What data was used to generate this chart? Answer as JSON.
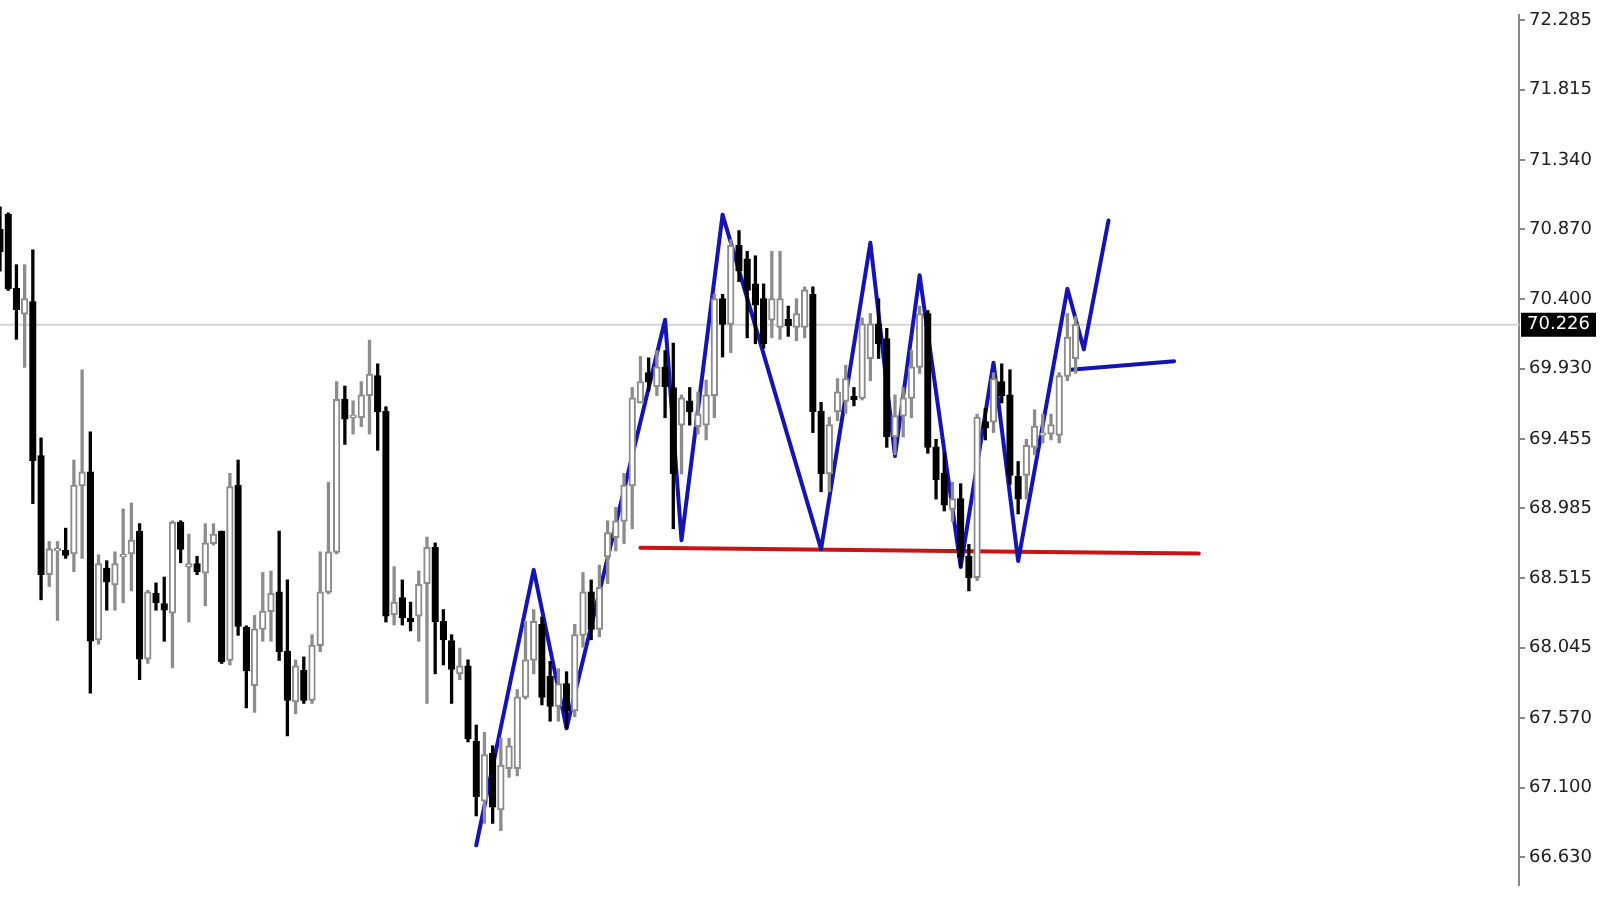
{
  "chart_data": {
    "type": "candlestick",
    "tick_labels": "y",
    "categories": [
      null,
      null,
      null,
      null,
      null,
      null,
      null,
      null,
      null,
      null,
      null,
      null,
      null,
      null,
      null,
      null,
      null,
      null,
      null,
      null,
      null,
      null,
      null,
      null,
      null,
      null,
      null,
      null,
      null,
      null,
      null,
      null,
      null,
      null,
      null,
      null,
      null,
      null,
      null,
      null,
      null,
      null,
      null,
      null,
      null,
      null,
      null,
      null,
      null,
      null,
      null,
      null,
      null,
      null,
      null,
      null,
      null,
      null,
      null,
      null,
      null,
      null,
      null,
      null,
      null,
      null,
      null,
      null,
      null,
      null,
      null,
      null,
      null,
      null,
      null,
      null,
      null,
      null,
      null,
      null,
      null,
      null,
      null,
      null,
      null,
      null,
      null,
      null,
      null,
      null,
      null,
      null,
      null,
      null,
      null,
      null,
      null,
      null,
      null,
      null,
      null,
      null,
      null,
      null,
      null,
      null,
      null,
      null,
      null,
      null,
      null,
      null,
      null,
      null,
      null,
      null,
      null,
      null,
      null,
      null,
      null,
      null,
      null,
      null,
      null,
      null,
      null,
      null,
      null,
      null,
      null,
      null,
      null,
      null,
      null,
      null,
      null,
      null,
      null,
      null,
      null,
      null,
      null,
      null,
      null,
      null,
      null,
      null,
      null,
      null,
      null,
      null,
      null,
      null,
      null,
      null,
      null,
      null,
      null,
      null,
      null,
      null,
      null,
      null,
      null,
      null,
      null,
      null,
      null,
      null,
      null,
      null,
      null,
      null,
      null,
      null,
      null,
      null,
      null,
      null,
      null,
      null,
      null,
      null,
      null,
      null
    ],
    "ohlc": [
      [
        70.87,
        71.02,
        70.59,
        70.72
      ],
      [
        70.97,
        70.98,
        70.46,
        70.47
      ],
      [
        70.47,
        70.63,
        70.13,
        70.33
      ],
      [
        70.3,
        70.63,
        69.94,
        70.4
      ],
      [
        70.38,
        70.73,
        69.02,
        69.31
      ],
      [
        69.34,
        69.46,
        68.37,
        68.54
      ],
      [
        68.54,
        68.76,
        68.46,
        68.71
      ],
      [
        68.7,
        68.76,
        68.23,
        68.71
      ],
      [
        68.7,
        68.85,
        68.65,
        68.67
      ],
      [
        68.68,
        69.31,
        68.56,
        69.14
      ],
      [
        69.14,
        69.92,
        68.65,
        69.23
      ],
      [
        69.23,
        69.5,
        67.74,
        68.09
      ],
      [
        68.1,
        68.67,
        68.07,
        68.61
      ],
      [
        68.58,
        68.63,
        68.3,
        68.49
      ],
      [
        68.47,
        68.69,
        68.3,
        68.61
      ],
      [
        68.66,
        68.98,
        68.35,
        68.67
      ],
      [
        68.68,
        69.02,
        68.43,
        68.77
      ],
      [
        68.83,
        68.88,
        67.83,
        67.97
      ],
      [
        67.97,
        68.43,
        67.94,
        68.42
      ],
      [
        68.41,
        68.48,
        68.3,
        68.35
      ],
      [
        68.34,
        68.52,
        68.09,
        68.3
      ],
      [
        68.28,
        68.9,
        67.91,
        68.89
      ],
      [
        68.89,
        68.9,
        68.62,
        68.71
      ],
      [
        68.59,
        68.81,
        68.22,
        68.61
      ],
      [
        68.61,
        68.66,
        68.54,
        68.56
      ],
      [
        68.55,
        68.88,
        68.33,
        68.75
      ],
      [
        68.75,
        68.88,
        68.74,
        68.81
      ],
      [
        68.83,
        68.83,
        67.94,
        67.95
      ],
      [
        67.96,
        69.22,
        67.93,
        69.13
      ],
      [
        69.14,
        69.31,
        68.13,
        68.19
      ],
      [
        68.18,
        68.19,
        67.64,
        67.89
      ],
      [
        67.79,
        68.26,
        67.61,
        68.17
      ],
      [
        68.17,
        68.55,
        68.09,
        68.29
      ],
      [
        68.29,
        68.56,
        68.09,
        68.41
      ],
      [
        68.42,
        68.83,
        67.96,
        68.02
      ],
      [
        68.02,
        68.5,
        67.45,
        67.69
      ],
      [
        67.68,
        67.96,
        67.6,
        67.92
      ],
      [
        67.89,
        67.98,
        67.67,
        67.69
      ],
      [
        67.69,
        68.13,
        67.67,
        68.06
      ],
      [
        68.06,
        68.69,
        68.02,
        68.42
      ],
      [
        68.42,
        69.16,
        68.41,
        68.69
      ],
      [
        68.69,
        69.84,
        68.68,
        69.72
      ],
      [
        69.72,
        69.81,
        69.42,
        69.59
      ],
      [
        69.6,
        69.71,
        69.49,
        69.61
      ],
      [
        69.6,
        69.84,
        69.54,
        69.75
      ],
      [
        69.75,
        70.12,
        69.49,
        69.89
      ],
      [
        69.88,
        69.96,
        69.38,
        69.64
      ],
      [
        69.64,
        69.67,
        68.22,
        68.26
      ],
      [
        68.27,
        68.59,
        68.2,
        68.35
      ],
      [
        68.38,
        68.5,
        68.2,
        68.25
      ],
      [
        68.24,
        68.35,
        68.16,
        68.22
      ],
      [
        68.26,
        68.56,
        68.09,
        68.47
      ],
      [
        68.48,
        68.79,
        67.67,
        68.72
      ],
      [
        68.72,
        68.75,
        67.87,
        68.22
      ],
      [
        68.22,
        68.3,
        67.93,
        68.1
      ],
      [
        68.09,
        68.13,
        67.67,
        67.9
      ],
      [
        67.87,
        68.04,
        67.83,
        67.92
      ],
      [
        67.92,
        67.96,
        67.41,
        67.43
      ],
      [
        67.41,
        67.52,
        66.91,
        67.04
      ],
      [
        67.01,
        67.47,
        66.86,
        67.32
      ],
      [
        67.33,
        67.38,
        66.86,
        66.97
      ],
      [
        66.95,
        67.43,
        66.81,
        67.25
      ],
      [
        67.23,
        67.43,
        67.17,
        67.38
      ],
      [
        67.23,
        67.76,
        67.18,
        67.71
      ],
      [
        67.71,
        68.22,
        67.7,
        67.96
      ],
      [
        67.96,
        68.3,
        67.87,
        68.22
      ],
      [
        68.2,
        68.25,
        67.66,
        67.71
      ],
      [
        67.85,
        67.95,
        67.55,
        67.65
      ],
      [
        67.65,
        67.9,
        67.55,
        67.8
      ],
      [
        67.8,
        67.88,
        67.5,
        67.62
      ],
      [
        67.62,
        68.2,
        67.58,
        68.13
      ],
      [
        68.13,
        68.55,
        68.05,
        68.42
      ],
      [
        68.42,
        68.5,
        68.1,
        68.17
      ],
      [
        68.17,
        68.6,
        68.12,
        68.45
      ],
      [
        68.66,
        68.9,
        68.48,
        68.82
      ],
      [
        68.79,
        68.99,
        68.7,
        68.9
      ],
      [
        68.9,
        69.22,
        68.75,
        69.14
      ],
      [
        69.14,
        69.8,
        68.85,
        69.73
      ],
      [
        69.7,
        70.01,
        69.7,
        69.84
      ],
      [
        69.9,
        70.0,
        69.78,
        69.84
      ],
      [
        69.81,
        70.05,
        69.75,
        69.94
      ],
      [
        69.94,
        70.05,
        69.6,
        69.81
      ],
      [
        69.8,
        70.1,
        68.85,
        69.22
      ],
      [
        69.55,
        69.75,
        69.22,
        69.73
      ],
      [
        69.71,
        69.8,
        69.55,
        69.64
      ],
      [
        69.54,
        69.77,
        69.49,
        69.62
      ],
      [
        69.55,
        69.85,
        69.45,
        69.75
      ],
      [
        69.75,
        70.43,
        69.6,
        70.4
      ],
      [
        70.4,
        70.43,
        70.01,
        70.23
      ],
      [
        70.23,
        70.8,
        70.04,
        70.76
      ],
      [
        70.76,
        70.86,
        70.52,
        70.59
      ],
      [
        70.67,
        70.72,
        70.14,
        70.46
      ],
      [
        70.5,
        70.69,
        70.1,
        70.36
      ],
      [
        70.4,
        70.5,
        70.07,
        70.1
      ],
      [
        70.26,
        70.72,
        70.14,
        70.4
      ],
      [
        70.21,
        70.72,
        70.13,
        70.4
      ],
      [
        70.26,
        70.35,
        70.15,
        70.22
      ],
      [
        70.21,
        70.4,
        70.12,
        70.3
      ],
      [
        70.21,
        70.48,
        70.14,
        70.46
      ],
      [
        70.43,
        70.48,
        69.5,
        69.64
      ],
      [
        69.64,
        69.7,
        69.1,
        69.22
      ],
      [
        69.22,
        69.6,
        69.1,
        69.55
      ],
      [
        69.64,
        69.86,
        69.58,
        69.77
      ],
      [
        69.71,
        69.95,
        69.63,
        69.86
      ],
      [
        69.74,
        69.8,
        69.68,
        69.72
      ],
      [
        69.73,
        70.27,
        69.72,
        70.23
      ],
      [
        70.0,
        70.3,
        69.85,
        70.23
      ],
      [
        70.23,
        70.4,
        70.0,
        70.1
      ],
      [
        70.13,
        70.2,
        69.4,
        69.47
      ],
      [
        69.47,
        69.75,
        69.35,
        69.61
      ],
      [
        69.61,
        69.8,
        69.47,
        69.73
      ],
      [
        69.73,
        70.05,
        69.6,
        69.94
      ],
      [
        69.94,
        70.35,
        69.9,
        70.3
      ],
      [
        70.3,
        70.32,
        69.36,
        69.4
      ],
      [
        69.4,
        69.45,
        69.05,
        69.18
      ],
      [
        69.22,
        69.36,
        68.97,
        69.01
      ],
      [
        68.98,
        69.16,
        68.9,
        69.05
      ],
      [
        69.05,
        69.15,
        68.59,
        68.66
      ],
      [
        68.66,
        68.74,
        68.43,
        68.52
      ],
      [
        68.52,
        69.62,
        68.5,
        69.6
      ],
      [
        69.57,
        69.66,
        69.45,
        69.53
      ],
      [
        69.57,
        69.9,
        69.5,
        69.86
      ],
      [
        69.84,
        69.96,
        69.7,
        69.75
      ],
      [
        69.75,
        69.92,
        69.15,
        69.21
      ],
      [
        69.2,
        69.3,
        68.95,
        69.05
      ],
      [
        69.21,
        69.45,
        69.05,
        69.41
      ],
      [
        69.4,
        69.65,
        69.35,
        69.54
      ],
      [
        69.48,
        69.62,
        69.43,
        69.49
      ],
      [
        69.49,
        69.62,
        69.45,
        69.55
      ],
      [
        69.48,
        69.9,
        69.43,
        69.88
      ],
      [
        69.88,
        70.3,
        69.85,
        70.14
      ],
      [
        70.0,
        70.28,
        69.9,
        70.226
      ],
      null,
      null,
      null,
      null,
      null,
      null,
      null,
      null,
      null,
      null,
      null,
      null,
      null,
      null,
      null,
      null,
      null,
      null,
      null,
      null,
      null,
      null,
      null,
      null,
      null,
      null,
      null,
      null,
      null,
      null,
      null,
      null,
      null,
      null,
      null,
      null,
      null,
      null,
      null,
      null,
      null,
      null,
      null,
      null,
      null,
      null,
      null,
      null,
      null,
      null,
      null,
      null,
      null,
      null
    ],
    "series": [
      {
        "type": "line",
        "color": "#1414b4",
        "values": [
          null,
          null,
          null,
          null,
          null,
          null,
          null,
          null,
          null,
          null,
          null,
          null,
          null,
          null,
          null,
          null,
          null,
          null,
          null,
          null,
          null,
          null,
          null,
          null,
          null,
          null,
          null,
          null,
          null,
          null,
          null,
          null,
          null,
          null,
          null,
          null,
          null,
          null,
          null,
          null,
          null,
          null,
          null,
          null,
          null,
          null,
          null,
          null,
          null,
          null,
          null,
          null,
          null,
          null,
          null,
          null,
          null,
          null,
          66.71,
          null,
          null,
          null,
          null,
          null,
          null,
          68.57,
          null,
          null,
          null,
          67.5,
          null,
          null,
          null,
          null,
          null,
          null,
          null,
          null,
          null,
          null,
          null,
          70.26,
          null,
          68.77,
          null,
          null,
          null,
          null,
          70.97,
          null,
          null,
          null,
          null,
          null,
          null,
          null,
          null,
          null,
          null,
          null,
          68.71,
          null,
          null,
          null,
          null,
          null,
          70.78,
          null,
          null,
          69.34,
          null,
          null,
          70.56,
          null,
          null,
          null,
          null,
          68.59,
          null,
          null,
          null,
          69.97,
          null,
          null,
          68.63,
          null,
          null,
          null,
          null,
          null,
          70.47,
          null,
          70.06,
          null,
          null,
          70.93,
          null,
          null,
          null,
          null,
          null,
          null,
          null,
          null,
          null,
          null,
          null,
          null,
          null,
          null,
          null,
          null,
          null,
          null,
          null,
          null,
          null,
          null,
          null,
          null,
          null,
          null,
          null,
          null,
          null,
          null,
          null,
          null,
          null,
          null,
          null,
          null,
          null,
          null,
          null,
          null,
          null,
          null,
          null,
          null,
          null,
          null,
          null,
          null,
          null,
          null
        ]
      },
      {
        "type": "line",
        "color": "#1414b4",
        "values": [
          null,
          null,
          null,
          null,
          null,
          null,
          null,
          null,
          null,
          null,
          null,
          null,
          null,
          null,
          null,
          null,
          null,
          null,
          null,
          null,
          null,
          null,
          null,
          null,
          null,
          null,
          null,
          null,
          null,
          null,
          null,
          null,
          null,
          null,
          null,
          null,
          null,
          null,
          null,
          null,
          null,
          null,
          null,
          null,
          null,
          null,
          null,
          null,
          null,
          null,
          null,
          null,
          null,
          null,
          null,
          null,
          null,
          null,
          null,
          null,
          null,
          null,
          null,
          null,
          null,
          null,
          null,
          null,
          null,
          null,
          null,
          null,
          null,
          null,
          null,
          null,
          null,
          null,
          null,
          null,
          null,
          null,
          null,
          null,
          null,
          null,
          null,
          null,
          null,
          null,
          null,
          null,
          null,
          null,
          null,
          null,
          null,
          null,
          null,
          null,
          null,
          null,
          null,
          null,
          null,
          null,
          null,
          null,
          null,
          null,
          null,
          null,
          null,
          null,
          null,
          null,
          null,
          null,
          null,
          null,
          null,
          null,
          null,
          null,
          null,
          null,
          null,
          null,
          null,
          null,
          69.92,
          null,
          null,
          null,
          null,
          null,
          null,
          null,
          null,
          null,
          null,
          null,
          null,
          69.98,
          null,
          null,
          null,
          null,
          null,
          null,
          null,
          null,
          null,
          null,
          null,
          null,
          null,
          null,
          null,
          null,
          null,
          null,
          null,
          null,
          null,
          null,
          null,
          null,
          null,
          null,
          null,
          null,
          null,
          null,
          null,
          null,
          null,
          null,
          null,
          null,
          null,
          null,
          null,
          null,
          null,
          null
        ]
      },
      {
        "type": "line",
        "color": "#c81414",
        "values": [
          null,
          null,
          null,
          null,
          null,
          null,
          null,
          null,
          null,
          null,
          null,
          null,
          null,
          null,
          null,
          null,
          null,
          null,
          null,
          null,
          null,
          null,
          null,
          null,
          null,
          null,
          null,
          null,
          null,
          null,
          null,
          null,
          null,
          null,
          null,
          null,
          null,
          null,
          null,
          null,
          null,
          null,
          null,
          null,
          null,
          null,
          null,
          null,
          null,
          null,
          null,
          null,
          null,
          null,
          null,
          null,
          null,
          null,
          null,
          null,
          null,
          null,
          null,
          null,
          null,
          null,
          null,
          null,
          null,
          null,
          null,
          null,
          null,
          null,
          null,
          null,
          null,
          null,
          68.72,
          null,
          null,
          null,
          null,
          null,
          null,
          null,
          null,
          null,
          null,
          null,
          null,
          null,
          null,
          null,
          null,
          null,
          null,
          null,
          null,
          null,
          null,
          null,
          null,
          null,
          null,
          null,
          null,
          null,
          null,
          null,
          null,
          null,
          null,
          null,
          null,
          null,
          null,
          null,
          null,
          null,
          null,
          null,
          null,
          null,
          null,
          null,
          null,
          null,
          null,
          null,
          null,
          null,
          null,
          null,
          null,
          null,
          null,
          null,
          null,
          null,
          null,
          null,
          null,
          null,
          null,
          null,
          68.68,
          null,
          null,
          null,
          null,
          null,
          null,
          null,
          null,
          null,
          null,
          null,
          null,
          null,
          null,
          null,
          null,
          null,
          null,
          null,
          null,
          null,
          null,
          null,
          null,
          null,
          null,
          null,
          null,
          null,
          null,
          null,
          null,
          null,
          null,
          null,
          null,
          null,
          null,
          null
        ]
      }
    ],
    "ylim": [
      66.44,
      72.32
    ],
    "yticks": [
      {
        "value": 66.63,
        "label": "66.630"
      },
      {
        "value": 67.1,
        "label": "67.100"
      },
      {
        "value": 67.57,
        "label": "67.570"
      },
      {
        "value": 68.045,
        "label": "68.045"
      },
      {
        "value": 68.515,
        "label": "68.515"
      },
      {
        "value": 68.985,
        "label": "68.985"
      },
      {
        "value": 69.455,
        "label": "69.455"
      },
      {
        "value": 69.93,
        "label": "69.930"
      },
      {
        "value": 70.4,
        "label": "70.400"
      },
      {
        "value": 70.87,
        "label": "70.870"
      },
      {
        "value": 71.34,
        "label": "71.340"
      },
      {
        "value": 71.815,
        "label": "71.815"
      },
      {
        "value": 72.285,
        "label": "72.285"
      }
    ],
    "ref_lines": [
      {
        "axis": "y",
        "value": 70.226,
        "label": "70.226",
        "color": "#d4d4d4"
      }
    ]
  }
}
